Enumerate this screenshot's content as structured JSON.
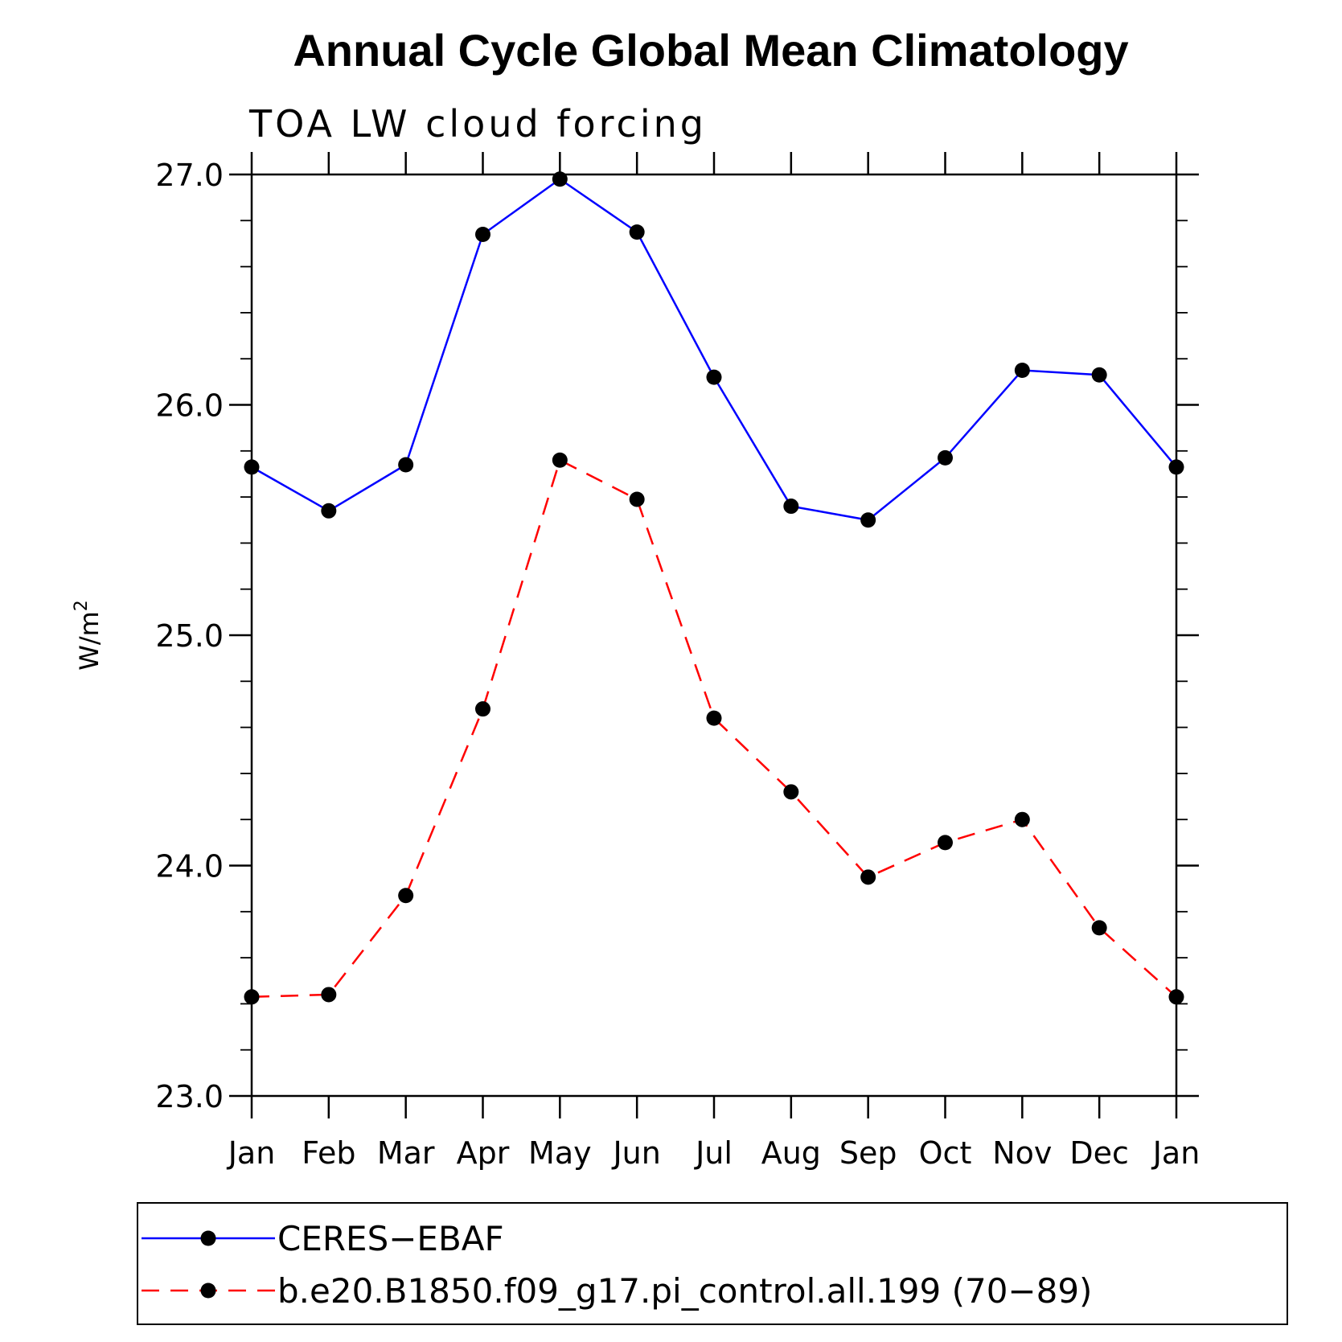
{
  "chart_data": {
    "type": "line",
    "title": "Annual Cycle Global Mean Climatology",
    "subtitle": "TOA LW cloud forcing",
    "ylabel": "W/m",
    "ylabel_superscript": "2",
    "xlabel": "",
    "ylim": [
      23.0,
      27.0
    ],
    "yticks": [
      "23.0",
      "24.0",
      "25.0",
      "26.0",
      "27.0"
    ],
    "categories": [
      "Jan",
      "Feb",
      "Mar",
      "Apr",
      "May",
      "Jun",
      "Jul",
      "Aug",
      "Sep",
      "Oct",
      "Nov",
      "Dec",
      "Jan"
    ],
    "grid": false,
    "legend_position": "bottom",
    "series": [
      {
        "name": "CERES−EBAF",
        "color": "#0000ff",
        "line_style": "solid",
        "marker": "filled-circle",
        "values": [
          25.73,
          25.54,
          25.74,
          26.74,
          26.98,
          26.75,
          26.12,
          25.56,
          25.5,
          25.77,
          26.15,
          26.13,
          25.73
        ]
      },
      {
        "name": "b.e20.B1850.f09_g17.pi_control.all.199 (70−89)",
        "color": "#ff0000",
        "line_style": "dashed",
        "marker": "filled-circle",
        "values": [
          23.43,
          23.44,
          23.87,
          24.68,
          25.76,
          25.59,
          24.64,
          24.32,
          23.95,
          24.1,
          24.2,
          23.73,
          23.43
        ]
      }
    ]
  }
}
